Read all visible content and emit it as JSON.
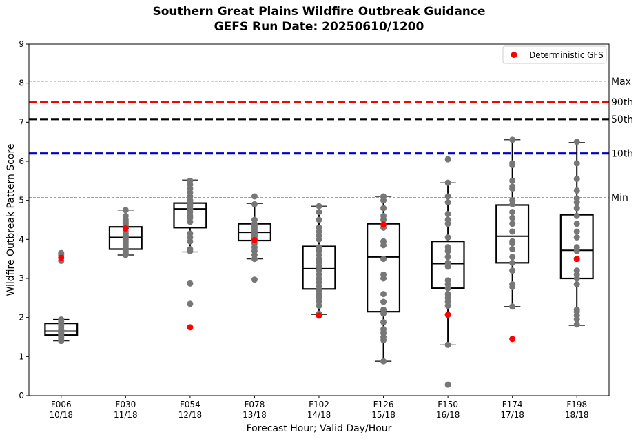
{
  "chart_data": {
    "type": "box",
    "title": "Southern Great Plains Wildfire Outbreak Guidance",
    "subtitle": "GEFS Run Date: 20250610/1200",
    "xlabel": "Forecast Hour; Valid Day/Hour",
    "ylabel": "Wildfire Outbreak Pattern Score",
    "ylim": [
      0,
      9
    ],
    "yticks": [
      "0",
      "1",
      "2",
      "3",
      "4",
      "5",
      "6",
      "7",
      "8",
      "9"
    ],
    "grid": false,
    "legend": {
      "position": "top-right",
      "entries": [
        {
          "label": "Deterministic GFS",
          "color": "#ff0000"
        }
      ]
    },
    "reference_lines": [
      {
        "label": "Max",
        "value": 8.05,
        "color": "#808080",
        "style": "dashed-thin"
      },
      {
        "label": "90th",
        "value": 7.52,
        "color": "#ff0000",
        "style": "dashed-thick"
      },
      {
        "label": "50th",
        "value": 7.08,
        "color": "#000000",
        "style": "dashed-thick"
      },
      {
        "label": "10th",
        "value": 6.2,
        "color": "#0000cc",
        "style": "dashed-thick"
      },
      {
        "label": "Min",
        "value": 5.07,
        "color": "#808080",
        "style": "dashed-thin"
      }
    ],
    "categories": [
      {
        "hour": "F006",
        "valid": "10/18",
        "whisker_low": 1.4,
        "q1": 1.55,
        "median": 1.65,
        "q3": 1.85,
        "whisker_high": 1.95,
        "deterministic": 3.53,
        "members": [
          1.4,
          1.45,
          1.5,
          1.55,
          1.6,
          1.62,
          1.65,
          1.68,
          1.7,
          1.75,
          1.8,
          1.85,
          1.9,
          1.95,
          3.45,
          3.6,
          3.65
        ]
      },
      {
        "hour": "F030",
        "valid": "11/18",
        "whisker_low": 3.6,
        "q1": 3.75,
        "median": 4.05,
        "q3": 4.32,
        "whisker_high": 4.75,
        "deterministic": 4.28,
        "members": [
          3.6,
          3.65,
          3.7,
          3.75,
          3.8,
          3.85,
          3.9,
          3.95,
          4.0,
          4.05,
          4.1,
          4.15,
          4.2,
          4.3,
          4.35,
          4.4,
          4.45,
          4.5,
          4.6,
          4.75
        ]
      },
      {
        "hour": "F054",
        "valid": "12/18",
        "whisker_low": 3.68,
        "q1": 4.3,
        "median": 4.78,
        "q3": 4.93,
        "whisker_high": 5.52,
        "deterministic": 1.75,
        "members": [
          2.35,
          2.87,
          3.7,
          3.75,
          3.95,
          4.05,
          4.15,
          4.45,
          4.55,
          4.6,
          4.7,
          4.78,
          4.85,
          4.9,
          4.95,
          5.0,
          5.1,
          5.2,
          5.3,
          5.4,
          5.5
        ]
      },
      {
        "hour": "F078",
        "valid": "13/18",
        "whisker_low": 3.5,
        "q1": 3.97,
        "median": 4.18,
        "q3": 4.4,
        "whisker_high": 4.92,
        "deterministic": 3.98,
        "members": [
          2.97,
          3.5,
          3.6,
          3.7,
          3.8,
          3.9,
          4.0,
          4.05,
          4.1,
          4.15,
          4.2,
          4.25,
          4.3,
          4.35,
          4.4,
          4.5,
          4.9,
          5.1
        ]
      },
      {
        "hour": "F102",
        "valid": "14/18",
        "whisker_low": 2.08,
        "q1": 2.73,
        "median": 3.25,
        "q3": 3.82,
        "whisker_high": 4.85,
        "deterministic": 2.05,
        "members": [
          2.1,
          2.3,
          2.4,
          2.5,
          2.6,
          2.7,
          2.8,
          2.9,
          3.0,
          3.1,
          3.2,
          3.3,
          3.4,
          3.5,
          3.6,
          3.7,
          3.8,
          4.0,
          4.1,
          4.2,
          4.3,
          4.5,
          4.7,
          4.85
        ]
      },
      {
        "hour": "F126",
        "valid": "15/18",
        "whisker_low": 0.88,
        "q1": 2.15,
        "median": 3.55,
        "q3": 4.4,
        "whisker_high": 5.1,
        "deterministic": 4.38,
        "members": [
          0.88,
          1.42,
          1.5,
          1.6,
          1.7,
          1.88,
          2.1,
          2.2,
          2.4,
          2.6,
          3.0,
          3.1,
          3.5,
          3.85,
          3.95,
          4.3,
          4.5,
          4.6,
          4.8,
          5.0,
          5.1
        ]
      },
      {
        "hour": "F150",
        "valid": "16/18",
        "whisker_low": 1.3,
        "q1": 2.75,
        "median": 3.38,
        "q3": 3.95,
        "whisker_high": 5.45,
        "deterministic": 2.07,
        "members": [
          0.28,
          1.3,
          2.3,
          2.4,
          2.5,
          2.6,
          2.75,
          2.85,
          2.95,
          3.3,
          3.4,
          3.55,
          3.7,
          3.8,
          4.05,
          4.4,
          4.5,
          4.65,
          4.95,
          5.1,
          5.45,
          6.05
        ]
      },
      {
        "hour": "F174",
        "valid": "17/18",
        "whisker_low": 2.28,
        "q1": 3.4,
        "median": 4.08,
        "q3": 4.88,
        "whisker_high": 6.55,
        "deterministic": 1.45,
        "members": [
          2.28,
          2.78,
          2.85,
          3.2,
          3.4,
          3.55,
          3.75,
          3.9,
          3.95,
          4.2,
          4.4,
          4.55,
          4.7,
          4.9,
          5.0,
          5.3,
          5.35,
          5.5,
          5.9,
          5.95,
          6.55
        ]
      },
      {
        "hour": "F198",
        "valid": "18/18",
        "whisker_low": 1.8,
        "q1": 3.0,
        "median": 3.72,
        "q3": 4.63,
        "whisker_high": 6.48,
        "deterministic": 3.5,
        "members": [
          1.82,
          1.95,
          2.05,
          2.15,
          2.2,
          2.85,
          3.0,
          3.1,
          3.2,
          3.5,
          3.7,
          3.8,
          4.05,
          4.2,
          4.4,
          4.6,
          4.8,
          4.95,
          5.05,
          5.25,
          5.55,
          5.95,
          6.5
        ]
      }
    ]
  }
}
